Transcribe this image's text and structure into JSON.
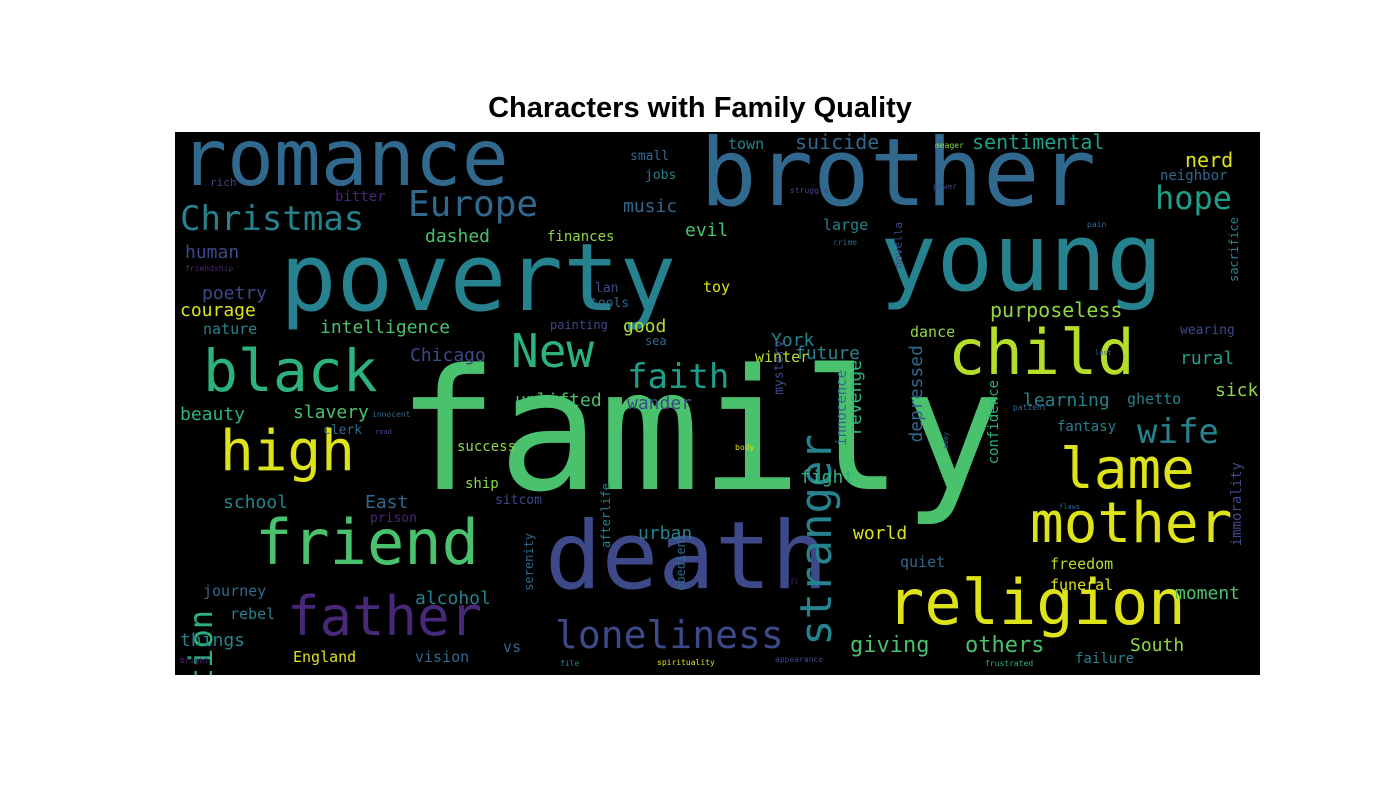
{
  "figure": {
    "title": "Characters with Family Quality"
  },
  "palette": {
    "yellow": "#dde318",
    "lime": "#b5de2b",
    "green": "#4ac16d",
    "mint": "#2db27d",
    "teal": "#1f9e89",
    "cyan": "#26828e",
    "blue": "#31688e",
    "indigo": "#3e4989",
    "purple": "#482878",
    "violet": "#440154",
    "gold": "#fde725",
    "olive": "#8fd744"
  },
  "chart_data": {
    "type": "wordcloud",
    "title": "Characters with Family Quality",
    "words": [
      {
        "text": "family",
        "weight": 100,
        "color": "#4ac16d"
      },
      {
        "text": "poverty",
        "weight": 60,
        "color": "#26828e"
      },
      {
        "text": "brother",
        "weight": 55,
        "color": "#31688e"
      },
      {
        "text": "young",
        "weight": 55,
        "color": "#26828e"
      },
      {
        "text": "death",
        "weight": 55,
        "color": "#3e4989"
      },
      {
        "text": "romance",
        "weight": 50,
        "color": "#31688e"
      },
      {
        "text": "religion",
        "weight": 40,
        "color": "#dde318"
      },
      {
        "text": "child",
        "weight": 38,
        "color": "#b5de2b"
      },
      {
        "text": "friend",
        "weight": 38,
        "color": "#4ac16d"
      },
      {
        "text": "black",
        "weight": 36,
        "color": "#2db27d"
      },
      {
        "text": "mother",
        "weight": 36,
        "color": "#dde318"
      },
      {
        "text": "high",
        "weight": 34,
        "color": "#dde318"
      },
      {
        "text": "lame",
        "weight": 34,
        "color": "#dde318"
      },
      {
        "text": "father",
        "weight": 30,
        "color": "#482878"
      },
      {
        "text": "loneliness",
        "weight": 28,
        "color": "#3e4989"
      },
      {
        "text": "New",
        "weight": 28,
        "color": "#2db27d"
      },
      {
        "text": "stranger",
        "weight": 26,
        "color": "#26828e"
      },
      {
        "text": "Christmas",
        "weight": 22,
        "color": "#26828e"
      },
      {
        "text": "Europe",
        "weight": 22,
        "color": "#31688e"
      },
      {
        "text": "faith",
        "weight": 22,
        "color": "#1f9e89"
      },
      {
        "text": "wife",
        "weight": 22,
        "color": "#26828e"
      },
      {
        "text": "hope",
        "weight": 20,
        "color": "#1f9e89"
      },
      {
        "text": "ambition",
        "weight": 20,
        "color": "#2db27d"
      },
      {
        "text": "giving",
        "weight": 14,
        "color": "#4ac16d"
      },
      {
        "text": "others",
        "weight": 14,
        "color": "#4ac16d"
      },
      {
        "text": "suicide",
        "weight": 12,
        "color": "#31688e"
      },
      {
        "text": "sentimental",
        "weight": 12,
        "color": "#1f9e89"
      },
      {
        "text": "nerd",
        "weight": 12,
        "color": "#dde318"
      },
      {
        "text": "purposeless",
        "weight": 12,
        "color": "#8fd744"
      },
      {
        "text": "intelligence",
        "weight": 12,
        "color": "#4ac16d"
      },
      {
        "text": "uplifted",
        "weight": 12,
        "color": "#4ac16d"
      },
      {
        "text": "slavery",
        "weight": 12,
        "color": "#4ac16d"
      },
      {
        "text": "beauty",
        "weight": 12,
        "color": "#2db27d"
      },
      {
        "text": "school",
        "weight": 12,
        "color": "#26828e"
      },
      {
        "text": "East",
        "weight": 12,
        "color": "#31688e"
      },
      {
        "text": "Chicago",
        "weight": 12,
        "color": "#3e4989"
      },
      {
        "text": "York",
        "weight": 12,
        "color": "#26828e"
      },
      {
        "text": "wander",
        "weight": 12,
        "color": "#3e4989"
      },
      {
        "text": "revenge",
        "weight": 12,
        "color": "#2db27d"
      },
      {
        "text": "learning",
        "weight": 12,
        "color": "#26828e"
      },
      {
        "text": "sick",
        "weight": 12,
        "color": "#8fd744"
      },
      {
        "text": "rural",
        "weight": 12,
        "color": "#1f9e89"
      },
      {
        "text": "moment",
        "weight": 12,
        "color": "#4ac16d"
      },
      {
        "text": "South",
        "weight": 12,
        "color": "#8fd744"
      },
      {
        "text": "world",
        "weight": 12,
        "color": "#dde318"
      },
      {
        "text": "fight",
        "weight": 12,
        "color": "#2db27d"
      },
      {
        "text": "urban",
        "weight": 12,
        "color": "#26828e"
      },
      {
        "text": "alcohol",
        "weight": 12,
        "color": "#26828e"
      },
      {
        "text": "courage",
        "weight": 12,
        "color": "#dde318"
      },
      {
        "text": "poetry",
        "weight": 12,
        "color": "#3e4989"
      },
      {
        "text": "human",
        "weight": 12,
        "color": "#3e4989"
      },
      {
        "text": "music",
        "weight": 12,
        "color": "#31688e"
      },
      {
        "text": "dashed",
        "weight": 12,
        "color": "#4ac16d"
      },
      {
        "text": "evil",
        "weight": 12,
        "color": "#4ac16d"
      },
      {
        "text": "good",
        "weight": 12,
        "color": "#b5de2b"
      },
      {
        "text": "future",
        "weight": 12,
        "color": "#26828e"
      },
      {
        "text": "depressed",
        "weight": 12,
        "color": "#31688e"
      },
      {
        "text": "things",
        "weight": 12,
        "color": "#26828e"
      },
      {
        "text": "England",
        "weight": 10,
        "color": "#dde318"
      },
      {
        "text": "rebel",
        "weight": 10,
        "color": "#26828e"
      },
      {
        "text": "journey",
        "weight": 10,
        "color": "#31688e"
      },
      {
        "text": "vision",
        "weight": 10,
        "color": "#31688e"
      },
      {
        "text": "vs",
        "weight": 10,
        "color": "#31688e"
      },
      {
        "text": "quiet",
        "weight": 10,
        "color": "#31688e"
      },
      {
        "text": "freedom",
        "weight": 10,
        "color": "#b5de2b"
      },
      {
        "text": "funeral",
        "weight": 10,
        "color": "#dde318"
      },
      {
        "text": "failure",
        "weight": 10,
        "color": "#26828e"
      },
      {
        "text": "fantasy",
        "weight": 10,
        "color": "#26828e"
      },
      {
        "text": "confidence",
        "weight": 10,
        "color": "#2db27d"
      },
      {
        "text": "innocence",
        "weight": 10,
        "color": "#31688e"
      },
      {
        "text": "immorality",
        "weight": 10,
        "color": "#3e4989"
      },
      {
        "text": "dance",
        "weight": 10,
        "color": "#8fd744"
      },
      {
        "text": "winter",
        "weight": 10,
        "color": "#b5de2b"
      },
      {
        "text": "ghetto",
        "weight": 10,
        "color": "#26828e"
      },
      {
        "text": "success",
        "weight": 10,
        "color": "#8fd744"
      },
      {
        "text": "ship",
        "weight": 10,
        "color": "#8fd744"
      },
      {
        "text": "sitcom",
        "weight": 10,
        "color": "#3e4989"
      },
      {
        "text": "prison",
        "weight": 10,
        "color": "#482878"
      },
      {
        "text": "clerk",
        "weight": 10,
        "color": "#31688e"
      },
      {
        "text": "nature",
        "weight": 10,
        "color": "#26828e"
      },
      {
        "text": "toy",
        "weight": 10,
        "color": "#dde318"
      },
      {
        "text": "lan",
        "weight": 10,
        "color": "#3e4989"
      },
      {
        "text": "tools",
        "weight": 10,
        "color": "#31688e"
      },
      {
        "text": "painting",
        "weight": 10,
        "color": "#3e4989"
      },
      {
        "text": "sea",
        "weight": 10,
        "color": "#31688e"
      },
      {
        "text": "mystery",
        "weight": 10,
        "color": "#3e4989"
      },
      {
        "text": "large",
        "weight": 10,
        "color": "#26828e"
      },
      {
        "text": "finances",
        "weight": 10,
        "color": "#8fd744"
      },
      {
        "text": "small",
        "weight": 10,
        "color": "#31688e"
      },
      {
        "text": "jobs",
        "weight": 10,
        "color": "#26828e"
      },
      {
        "text": "town",
        "weight": 10,
        "color": "#26828e"
      },
      {
        "text": "neighbor",
        "weight": 10,
        "color": "#31688e"
      },
      {
        "text": "bitter",
        "weight": 10,
        "color": "#482878"
      },
      {
        "text": "rich",
        "weight": 8,
        "color": "#3e4989"
      },
      {
        "text": "friendship",
        "weight": 6,
        "color": "#482878"
      },
      {
        "text": "serenity",
        "weight": 10,
        "color": "#31688e"
      },
      {
        "text": "afterlife",
        "weight": 10,
        "color": "#26828e"
      },
      {
        "text": "obedient",
        "weight": 10,
        "color": "#31688e"
      },
      {
        "text": "sacrifice",
        "weight": 10,
        "color": "#26828e"
      },
      {
        "text": "wearing",
        "weight": 10,
        "color": "#3e4989"
      },
      {
        "text": "novella",
        "weight": 8,
        "color": "#3e4989"
      },
      {
        "text": "innocent",
        "weight": 6,
        "color": "#31688e"
      },
      {
        "text": "body",
        "weight": 6,
        "color": "#dde318"
      },
      {
        "text": "file",
        "weight": 6,
        "color": "#26828e"
      },
      {
        "text": "spirituality",
        "weight": 6,
        "color": "#dde318"
      },
      {
        "text": "appearance",
        "weight": 6,
        "color": "#3e4989"
      },
      {
        "text": "frustrated",
        "weight": 6,
        "color": "#2db27d"
      },
      {
        "text": "bright",
        "weight": 6,
        "color": "#482878"
      },
      {
        "text": "struggle",
        "weight": 6,
        "color": "#3e4989"
      },
      {
        "text": "crime",
        "weight": 6,
        "color": "#31688e"
      },
      {
        "text": "meager",
        "weight": 6,
        "color": "#8fd744"
      },
      {
        "text": "power",
        "weight": 6,
        "color": "#3e4989"
      },
      {
        "text": "pain",
        "weight": 6,
        "color": "#31688e"
      },
      {
        "text": "patient",
        "weight": 6,
        "color": "#31688e"
      },
      {
        "text": "lost",
        "weight": 6,
        "color": "#31688e"
      },
      {
        "text": "flaws",
        "weight": 6,
        "color": "#31688e"
      },
      {
        "text": "away",
        "weight": 6,
        "color": "#31688e"
      },
      {
        "text": "road",
        "weight": 6,
        "color": "#3e4989"
      },
      {
        "text": "fl",
        "weight": 6,
        "color": "#482878"
      }
    ]
  }
}
